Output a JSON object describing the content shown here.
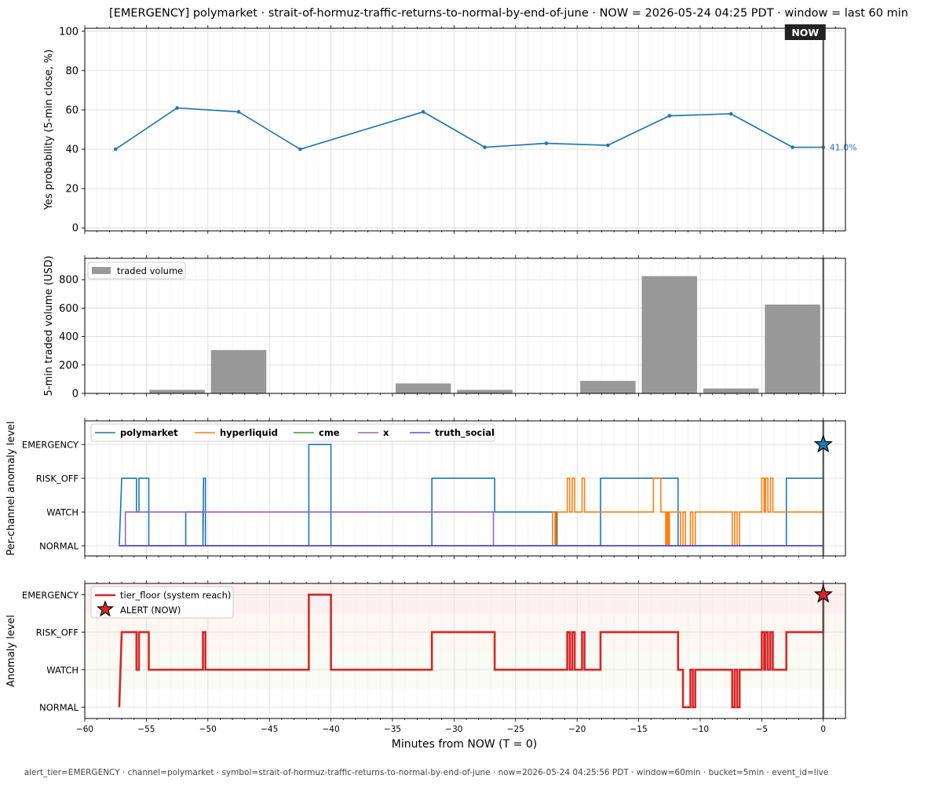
{
  "title": "[EMERGENCY] polymarket · strait-of-hormuz-traffic-returns-to-normal-by-end-of-june  ·  NOW = 2026-05-24 04:25 PDT  ·  window = last 60 min",
  "footer": "alert_tier=EMERGENCY  ·  channel=polymarket  ·  symbol=strait-of-hormuz-traffic-returns-to-normal-by-end-of-june  ·  now=2026-05-24 04:25:56 PDT  ·  window=60min  ·  bucket=5min  ·  event_id=live",
  "now_label": "NOW",
  "xlabel": "Minutes from NOW (T = 0)",
  "xlim": [
    -60,
    1.8
  ],
  "x_ticks": [
    -60,
    -55,
    -50,
    -45,
    -40,
    -35,
    -30,
    -25,
    -20,
    -15,
    -10,
    -5,
    0
  ],
  "x_tick_labels": [
    "−60",
    "−55",
    "−50",
    "−45",
    "−40",
    "−35",
    "−30",
    "−25",
    "−20",
    "−15",
    "−10",
    "−5",
    "0"
  ],
  "levels": [
    "NORMAL",
    "WATCH",
    "RISK_OFF",
    "EMERGENCY"
  ],
  "colors": {
    "probability": "#1f77b4",
    "volume": "#999999",
    "polymarket": "#1f77b4",
    "hyperliquid": "#ff7f0e",
    "cme": "#2ca02c",
    "x": "#9467bd",
    "truth_social": "#5b4fe0",
    "tier": "#d62728",
    "now_line": "#555555"
  },
  "chart_data": [
    {
      "type": "line",
      "ylabel": "Yes probability (5-min close, %)",
      "ylim": [
        -1.5,
        101.5
      ],
      "y_ticks": [
        0,
        20,
        40,
        60,
        80,
        100
      ],
      "grid": true,
      "x": [
        -57.5,
        -52.5,
        -47.5,
        -42.5,
        -32.5,
        -27.5,
        -22.5,
        -17.5,
        -12.5,
        -7.5,
        -2.5,
        0
      ],
      "y": [
        40,
        61,
        59,
        40,
        59,
        41,
        43,
        42,
        57,
        58,
        41,
        41
      ],
      "last_value_label": "41.0%"
    },
    {
      "type": "bar",
      "ylabel": "5-min traded volume (USD)",
      "ylim": [
        0,
        950
      ],
      "y_ticks": [
        0,
        200,
        400,
        600,
        800
      ],
      "grid": true,
      "legend": {
        "placement": "top-left",
        "label": "traded volume"
      },
      "bar_width": 4.5,
      "x": [
        -57.5,
        -52.5,
        -47.5,
        -42.5,
        -37.5,
        -32.5,
        -27.5,
        -22.5,
        -17.5,
        -12.5,
        -7.5,
        -2.5
      ],
      "values": [
        3,
        25,
        305,
        0,
        0,
        70,
        25,
        3,
        88,
        825,
        35,
        625
      ]
    },
    {
      "type": "line",
      "ylabel": "Per-channel anomaly level",
      "ylim": [
        -0.3,
        3.7
      ],
      "grid": true,
      "legend": {
        "placement": "top-left"
      },
      "series": [
        {
          "name": "polymarket",
          "color_key": "polymarket",
          "points": [
            [
              -57.2,
              0
            ],
            [
              -57.0,
              2
            ],
            [
              -55.8,
              2
            ],
            [
              -55.8,
              1
            ],
            [
              -55.6,
              1
            ],
            [
              -55.6,
              2
            ],
            [
              -54.8,
              2
            ],
            [
              -54.8,
              0
            ],
            [
              -51.8,
              0
            ],
            [
              -51.8,
              1
            ],
            [
              -50.4,
              1
            ],
            [
              -50.4,
              0
            ],
            [
              -50.35,
              2
            ],
            [
              -50.2,
              2
            ],
            [
              -50.2,
              0
            ],
            [
              -41.8,
              0
            ],
            [
              -41.8,
              3
            ],
            [
              -40.0,
              3
            ],
            [
              -40.0,
              0
            ],
            [
              -31.8,
              0
            ],
            [
              -31.8,
              2
            ],
            [
              -26.7,
              2
            ],
            [
              -26.7,
              1
            ],
            [
              -21.7,
              1
            ],
            [
              -21.7,
              0
            ],
            [
              -18.1,
              0
            ],
            [
              -18.1,
              2
            ],
            [
              -11.8,
              2
            ],
            [
              -11.8,
              0
            ],
            [
              -3.0,
              0
            ],
            [
              -3.0,
              2
            ],
            [
              0,
              2
            ],
            [
              0,
              3
            ]
          ]
        },
        {
          "name": "hyperliquid",
          "color_key": "hyperliquid",
          "points": [
            [
              -57.2,
              0
            ],
            [
              -22.0,
              0
            ],
            [
              -22.0,
              1
            ],
            [
              -21.8,
              1
            ],
            [
              -21.8,
              0
            ],
            [
              -21.6,
              0
            ],
            [
              -21.6,
              1
            ],
            [
              -20.8,
              1
            ],
            [
              -20.8,
              2
            ],
            [
              -20.6,
              2
            ],
            [
              -20.6,
              1
            ],
            [
              -20.4,
              1
            ],
            [
              -20.4,
              2
            ],
            [
              -20.2,
              2
            ],
            [
              -20.2,
              1
            ],
            [
              -19.6,
              1
            ],
            [
              -19.6,
              2
            ],
            [
              -19.4,
              2
            ],
            [
              -19.4,
              1
            ],
            [
              -13.8,
              1
            ],
            [
              -13.8,
              2
            ],
            [
              -13.2,
              2
            ],
            [
              -13.2,
              1
            ],
            [
              -12.8,
              1
            ],
            [
              -12.8,
              0
            ],
            [
              -12.7,
              0
            ],
            [
              -12.7,
              1
            ],
            [
              -12.6,
              1
            ],
            [
              -12.6,
              0
            ],
            [
              -12.5,
              0
            ],
            [
              -12.5,
              1
            ],
            [
              -11.6,
              1
            ],
            [
              -11.6,
              0
            ],
            [
              -11.4,
              0
            ],
            [
              -11.4,
              1
            ],
            [
              -11.2,
              1
            ],
            [
              -11.2,
              0
            ],
            [
              -10.8,
              0
            ],
            [
              -10.8,
              1
            ],
            [
              -10.6,
              1
            ],
            [
              -10.6,
              0
            ],
            [
              -10.4,
              0
            ],
            [
              -10.4,
              1
            ],
            [
              -7.4,
              1
            ],
            [
              -7.4,
              0
            ],
            [
              -7.2,
              0
            ],
            [
              -7.2,
              1
            ],
            [
              -7.0,
              1
            ],
            [
              -7.0,
              0
            ],
            [
              -6.8,
              0
            ],
            [
              -6.8,
              1
            ],
            [
              -5.0,
              1
            ],
            [
              -5.0,
              2
            ],
            [
              -4.8,
              2
            ],
            [
              -4.8,
              1
            ],
            [
              -4.7,
              1
            ],
            [
              -4.7,
              2
            ],
            [
              -4.5,
              2
            ],
            [
              -4.5,
              1
            ],
            [
              -4.3,
              1
            ],
            [
              -4.3,
              2
            ],
            [
              -4.1,
              2
            ],
            [
              -4.1,
              1
            ],
            [
              0,
              1
            ]
          ]
        },
        {
          "name": "cme",
          "color_key": "cme",
          "points": [
            [
              -57.2,
              0
            ],
            [
              0,
              0
            ]
          ]
        },
        {
          "name": "x",
          "color_key": "x",
          "points": [
            [
              -57.2,
              0
            ],
            [
              -56.7,
              0
            ],
            [
              -56.7,
              1
            ],
            [
              -26.8,
              1
            ],
            [
              -26.8,
              0
            ],
            [
              0,
              0
            ]
          ]
        },
        {
          "name": "truth_social",
          "color_key": "truth_social",
          "points": [
            [
              -57.2,
              0
            ],
            [
              0,
              0
            ]
          ]
        }
      ],
      "alert_marker": {
        "x": 0,
        "y": 3
      }
    },
    {
      "type": "line",
      "ylabel": "Anomaly level",
      "ylim": [
        -0.3,
        3.3
      ],
      "grid": true,
      "legend": {
        "placement": "top-left",
        "series_label": "tier_floor (system reach)",
        "marker_label": "ALERT (NOW)"
      },
      "series": [
        {
          "name": "tier_floor (system reach)",
          "color_key": "tier",
          "points": [
            [
              -57.2,
              0
            ],
            [
              -57.0,
              2
            ],
            [
              -55.8,
              2
            ],
            [
              -55.8,
              1
            ],
            [
              -55.6,
              1
            ],
            [
              -55.6,
              2
            ],
            [
              -54.8,
              2
            ],
            [
              -54.8,
              1
            ],
            [
              -50.4,
              1
            ],
            [
              -50.4,
              2
            ],
            [
              -50.2,
              2
            ],
            [
              -50.2,
              1
            ],
            [
              -41.8,
              1
            ],
            [
              -41.8,
              3
            ],
            [
              -40.0,
              3
            ],
            [
              -40.0,
              1
            ],
            [
              -31.8,
              1
            ],
            [
              -31.8,
              2
            ],
            [
              -26.7,
              2
            ],
            [
              -26.7,
              1
            ],
            [
              -20.8,
              1
            ],
            [
              -20.8,
              2
            ],
            [
              -20.6,
              2
            ],
            [
              -20.6,
              1
            ],
            [
              -20.4,
              1
            ],
            [
              -20.4,
              2
            ],
            [
              -20.2,
              2
            ],
            [
              -20.2,
              1
            ],
            [
              -19.6,
              1
            ],
            [
              -19.6,
              2
            ],
            [
              -19.4,
              2
            ],
            [
              -19.4,
              1
            ],
            [
              -18.1,
              1
            ],
            [
              -18.1,
              2
            ],
            [
              -11.8,
              2
            ],
            [
              -11.8,
              1
            ],
            [
              -11.4,
              1
            ],
            [
              -11.4,
              0
            ],
            [
              -10.8,
              0
            ],
            [
              -10.8,
              1
            ],
            [
              -10.6,
              1
            ],
            [
              -10.6,
              0
            ],
            [
              -10.4,
              0
            ],
            [
              -10.4,
              1
            ],
            [
              -7.4,
              1
            ],
            [
              -7.4,
              0
            ],
            [
              -7.2,
              0
            ],
            [
              -7.2,
              1
            ],
            [
              -7.0,
              1
            ],
            [
              -7.0,
              0
            ],
            [
              -6.8,
              0
            ],
            [
              -6.8,
              1
            ],
            [
              -5.0,
              1
            ],
            [
              -5.0,
              2
            ],
            [
              -4.8,
              2
            ],
            [
              -4.8,
              1
            ],
            [
              -4.7,
              1
            ],
            [
              -4.7,
              2
            ],
            [
              -4.5,
              2
            ],
            [
              -4.5,
              1
            ],
            [
              -4.3,
              1
            ],
            [
              -4.3,
              2
            ],
            [
              -4.1,
              2
            ],
            [
              -4.1,
              1
            ],
            [
              -3.0,
              1
            ],
            [
              -3.0,
              2
            ],
            [
              0,
              2
            ],
            [
              0,
              3
            ]
          ]
        }
      ],
      "alert_marker": {
        "x": 0,
        "y": 3
      }
    }
  ]
}
